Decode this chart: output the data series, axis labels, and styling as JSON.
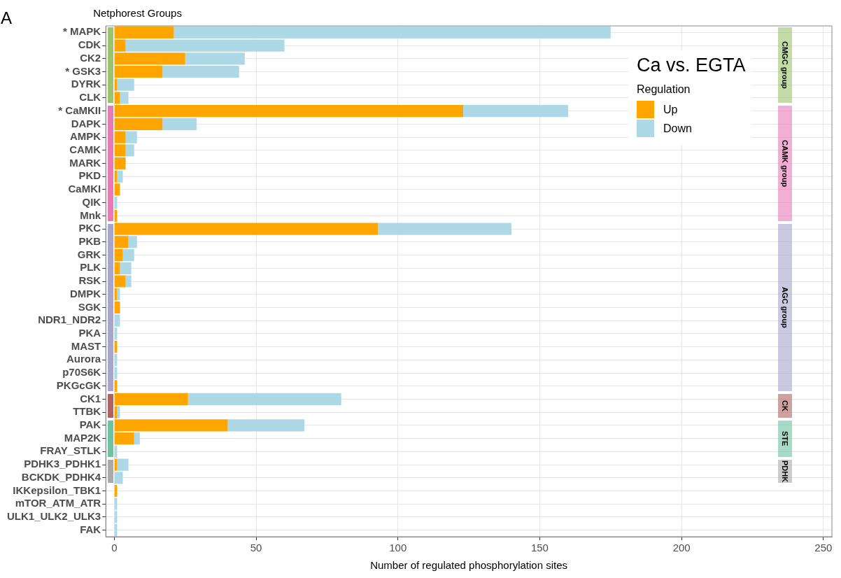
{
  "chart_data": {
    "type": "bar",
    "orientation": "horizontal",
    "stacked": true,
    "title": "Ca vs. EGTA",
    "subtitle": "Netphorest Groups",
    "xlabel": "Number of regulated phosphorylation sites",
    "legend_title": "Regulation",
    "legend": "top right",
    "grid": true,
    "annotations": [
      "A",
      "CMGC group",
      "CAMK group",
      "AGC group",
      "CK",
      "STE",
      "PDHK"
    ],
    "categories": [
      "* MAPK",
      "CDK",
      "CK2",
      "* GSK3",
      "DYRK",
      "CLK",
      "* CaMKII",
      "DAPK",
      "AMPK",
      "CAMK",
      "MARK",
      "PKD",
      "CaMKI",
      "QIK",
      "Mnk",
      "PKC",
      "PKB",
      "GRK",
      "PLK",
      "RSK",
      "DMPK",
      "SGK",
      "NDR1_NDR2",
      "PKA",
      "MAST",
      "Aurora",
      "p70S6K",
      "PKGcGK",
      "CK1",
      "TTBK",
      "PAK",
      "MAP2K",
      "FRAY_STLK",
      "PDHK3_PDHK1",
      "BCKDK_PDHK4",
      "IKKepsilon_TBK1",
      "mTOR_ATM_ATR",
      "ULK1_ULK2_ULK3",
      "FAK"
    ],
    "series": [
      {
        "name": "Up",
        "color": "#ffa500",
        "values": [
          21,
          4,
          25,
          17,
          1,
          2,
          123,
          17,
          4,
          4,
          4,
          1,
          2,
          0,
          1,
          93,
          5,
          3,
          2,
          4,
          1,
          2,
          0,
          0,
          1,
          0,
          0,
          1,
          26,
          1,
          40,
          7,
          0,
          1,
          0,
          1,
          0,
          0,
          0
        ]
      },
      {
        "name": "Down",
        "color": "#add8e6",
        "values": [
          154,
          56,
          21,
          27,
          6,
          3,
          37,
          12,
          4,
          3,
          0,
          2,
          0,
          1,
          0,
          47,
          3,
          4,
          4,
          2,
          1,
          0,
          2,
          1,
          0,
          1,
          1,
          0,
          54,
          1,
          27,
          2,
          1,
          4,
          3,
          0,
          1,
          1,
          1
        ]
      }
    ],
    "xlim": [
      -3,
      253
    ],
    "xticks": [
      0,
      50,
      100,
      150,
      200,
      250
    ]
  }
}
